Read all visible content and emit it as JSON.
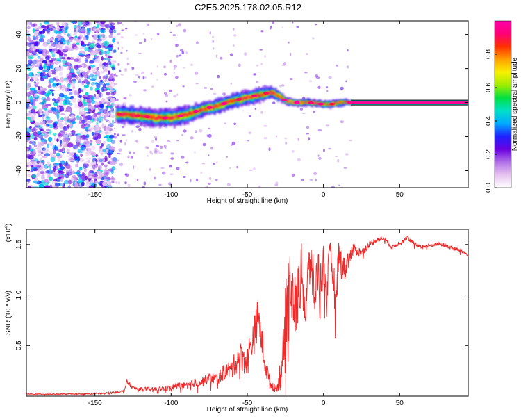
{
  "title": "C2E5.2025.178.02.05.R12",
  "chart_data": [
    {
      "type": "heatmap",
      "xlabel": "Height of straight line (km)",
      "ylabel": "Frequency (Hz)",
      "xlim": [
        -195,
        95
      ],
      "ylim": [
        -50,
        48
      ],
      "xticks": [
        -150,
        -100,
        -50,
        0,
        50
      ],
      "yticks": [
        -40,
        -20,
        0,
        20,
        40
      ],
      "noise_region_x": [
        -195,
        -137
      ],
      "sparse_region_x": [
        -137,
        18
      ],
      "ridge": {
        "x": [
          -136,
          -130,
          -120,
          -110,
          -100,
          -90,
          -80,
          -70,
          -60,
          -50,
          -45,
          -40,
          -35,
          -30,
          -25,
          -20,
          -10,
          0,
          5,
          10,
          18,
          95
        ],
        "y": [
          -7,
          -7,
          -8,
          -9,
          -9,
          -7,
          -4,
          -2,
          1,
          3,
          4,
          5,
          6,
          4,
          1,
          0,
          0,
          -1,
          -1,
          0,
          0,
          0
        ],
        "spread": [
          5,
          5,
          5,
          5,
          5,
          5,
          4,
          4,
          4,
          4,
          4,
          4,
          3,
          3,
          2,
          2,
          2,
          2,
          2,
          2,
          1.5,
          1.5
        ]
      },
      "colorbar": {
        "label": "Normalized spectral amplitude",
        "range": [
          0,
          1
        ],
        "ticks": [
          "0.0",
          "0.2",
          "0.4",
          "0.6",
          "0.8"
        ],
        "colors": [
          "#ffffff",
          "#e6c3f0",
          "#b070e8",
          "#6a00e0",
          "#1e22ff",
          "#00aaff",
          "#00e0c8",
          "#00e040",
          "#a0ee00",
          "#f8f000",
          "#ffa000",
          "#ff3000",
          "#ff0078",
          "#ff00aa"
        ]
      }
    },
    {
      "type": "line",
      "xlabel": "Height of straight line (km)",
      "ylabel": "SNR (10 * v/v)",
      "scale_label": "(x10",
      "scale_exponent": "4",
      "xlim": [
        -195,
        95
      ],
      "ylim": [
        0,
        1.65
      ],
      "xticks": [
        -150,
        -100,
        -50,
        0,
        50
      ],
      "yticks": [
        "0.5",
        "1.0",
        "1.5"
      ],
      "line_color": "#ee2a2a",
      "series": [
        {
          "x": [
            -195,
            -180,
            -160,
            -140,
            -131,
            -129,
            -125,
            -120,
            -110,
            -100,
            -95,
            -90,
            -85,
            -80,
            -75,
            -70,
            -65,
            -60,
            -55,
            -50,
            -47,
            -45,
            -43,
            -40,
            -38,
            -35,
            -32,
            -30,
            -28,
            -26,
            -24,
            -22,
            -20,
            -18,
            -16,
            -14,
            -12,
            -10,
            -8,
            -6,
            -4,
            -2,
            0,
            2,
            4,
            6,
            8,
            10,
            12,
            14,
            16,
            18,
            20,
            25,
            30,
            35,
            40,
            45,
            50,
            55,
            60,
            65,
            70,
            75,
            80,
            85,
            90,
            95
          ],
          "y": [
            0.02,
            0.02,
            0.02,
            0.03,
            0.05,
            0.14,
            0.08,
            0.07,
            0.07,
            0.08,
            0.11,
            0.1,
            0.13,
            0.14,
            0.18,
            0.17,
            0.24,
            0.27,
            0.4,
            0.35,
            0.55,
            0.62,
            0.8,
            0.5,
            0.3,
            0.12,
            0.08,
            0.1,
            0.25,
            0.4,
            0.95,
            1.2,
            0.95,
            0.85,
            1.1,
            1.25,
            0.8,
            1.2,
            1.35,
            0.95,
            1.25,
            1.15,
            1.3,
            1.05,
            1.35,
            1.25,
            0.95,
            1.4,
            1.3,
            1.25,
            1.35,
            1.4,
            1.45,
            1.42,
            1.5,
            1.55,
            1.56,
            1.47,
            1.52,
            1.57,
            1.5,
            1.48,
            1.49,
            1.51,
            1.49,
            1.46,
            1.44,
            1.4
          ],
          "noise": [
            0.005,
            0.005,
            0.005,
            0.01,
            0.01,
            0.02,
            0.02,
            0.02,
            0.02,
            0.03,
            0.03,
            0.03,
            0.04,
            0.05,
            0.05,
            0.06,
            0.08,
            0.1,
            0.14,
            0.16,
            0.18,
            0.2,
            0.18,
            0.16,
            0.12,
            0.06,
            0.04,
            0.05,
            0.2,
            0.35,
            0.45,
            0.35,
            0.35,
            0.3,
            0.3,
            0.3,
            0.3,
            0.25,
            0.25,
            0.25,
            0.25,
            0.22,
            0.22,
            0.2,
            0.2,
            0.2,
            0.2,
            0.18,
            0.15,
            0.12,
            0.1,
            0.08,
            0.06,
            0.04,
            0.03,
            0.03,
            0.02,
            0.02,
            0.02,
            0.02,
            0.02,
            0.02,
            0.02,
            0.02,
            0.02,
            0.02,
            0.02,
            0.02
          ]
        }
      ]
    }
  ]
}
